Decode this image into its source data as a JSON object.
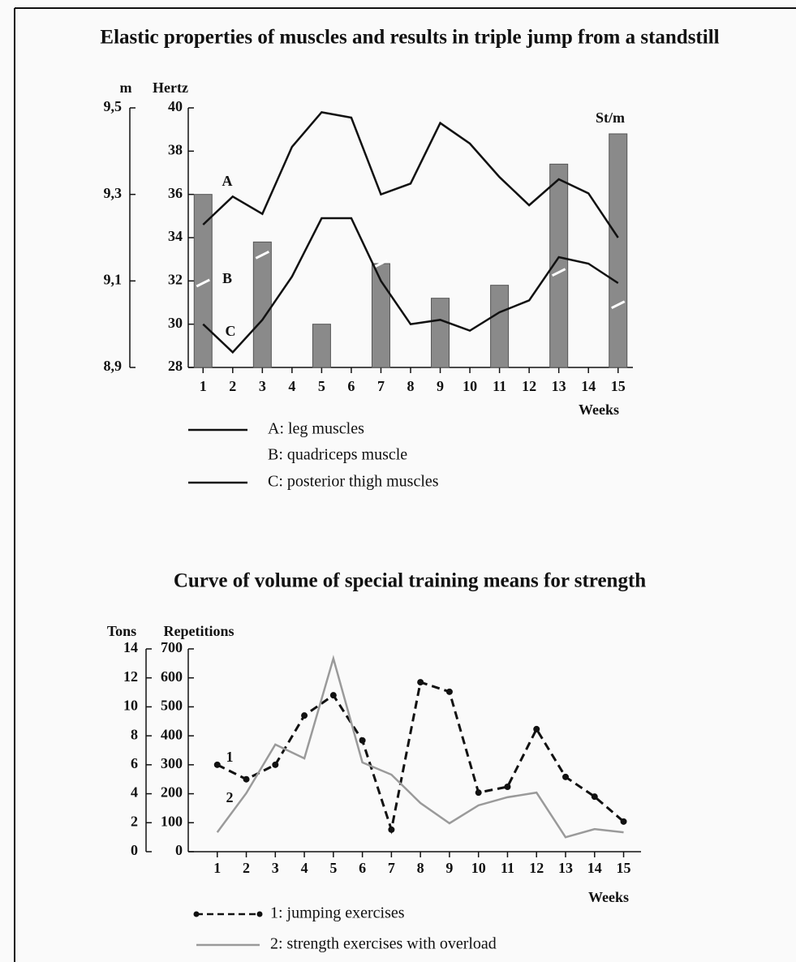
{
  "chart_data": [
    {
      "type": "bar",
      "title": "Elastic properties of muscles and results in triple jump from a standstill",
      "x_label": "Weeks",
      "y_label": "Hertz",
      "y2_label": "m",
      "x": [
        1,
        2,
        3,
        4,
        5,
        6,
        7,
        8,
        9,
        10,
        11,
        12,
        13,
        14,
        15
      ],
      "xlim": [
        0.5,
        15.5
      ],
      "xticks": [
        1,
        2,
        3,
        4,
        5,
        6,
        7,
        8,
        9,
        10,
        11,
        12,
        13,
        14,
        15
      ],
      "ylim": [
        28,
        40
      ],
      "yticks": [
        28,
        30,
        32,
        34,
        36,
        38,
        40
      ],
      "y2lim": [
        8.9,
        9.5
      ],
      "y2ticks": [
        {
          "value": 8.9,
          "label": "8,9"
        },
        {
          "value": 9.1,
          "label": "9,1"
        },
        {
          "value": 9.3,
          "label": "9,3"
        },
        {
          "value": 9.5,
          "label": "9,5"
        }
      ],
      "series": [
        {
          "type": "bar",
          "axis": "y2",
          "color": "#8a8a8a",
          "values": [
            9.3,
            null,
            9.19,
            null,
            9.0,
            null,
            9.14,
            null,
            9.06,
            null,
            9.09,
            null,
            9.37,
            null,
            9.44
          ]
        },
        {
          "type": "line",
          "name": "A: leg muscles",
          "color": "#111111",
          "values": [
            34.6,
            35.9,
            35.1,
            38.2,
            39.8,
            39.55,
            36.0,
            36.5,
            39.3,
            38.35,
            36.8,
            35.5,
            36.7,
            36.05,
            34.0
          ]
        },
        {
          "type": "point",
          "name": "B: quadriceps muscle",
          "color": "#ffffff",
          "values": [
            31.9,
            null,
            33.2,
            null,
            null,
            null,
            32.8,
            null,
            null,
            null,
            null,
            null,
            32.4,
            null,
            30.9
          ]
        },
        {
          "type": "line",
          "name": "C: posterior thigh muscles",
          "color": "#111111",
          "values": [
            30,
            28.7,
            30.2,
            32.2,
            34.9,
            34.9,
            32,
            30,
            30.2,
            29.7,
            30.55,
            31.1,
            33.1,
            32.8,
            31.9
          ]
        }
      ],
      "annotations": [
        "A",
        "B",
        "C",
        "St/m"
      ]
    },
    {
      "type": "line",
      "title": "Curve of volume of special training means for strength",
      "x_label": "Weeks",
      "y_label": "Repetitions",
      "y2_label": "Tons",
      "x": [
        1,
        2,
        3,
        4,
        5,
        6,
        7,
        8,
        9,
        10,
        11,
        12,
        13,
        14,
        15
      ],
      "xlim": [
        0,
        15.6
      ],
      "xticks": [
        1,
        2,
        3,
        4,
        5,
        6,
        7,
        8,
        9,
        10,
        11,
        12,
        13,
        14,
        15
      ],
      "ylim": [
        0,
        700
      ],
      "yticks": [
        0,
        100,
        200,
        300,
        400,
        500,
        600,
        700
      ],
      "y2lim": [
        0,
        14
      ],
      "y2ticks": [
        0,
        2,
        4,
        6,
        8,
        10,
        12,
        14
      ],
      "series": [
        {
          "type": "line",
          "name": "1: jumping exercises",
          "color": "#111111",
          "line_style": "dashed",
          "markers": true,
          "values": [
            300,
            250,
            300,
            470,
            540,
            384,
            76,
            585,
            552,
            204,
            224,
            423,
            258,
            190,
            104
          ]
        },
        {
          "type": "line",
          "name": "2: strength exercises with overload",
          "color": "#9a9a9a",
          "values": [
            67,
            202,
            370,
            322,
            667,
            308,
            266,
            168,
            98,
            160,
            188,
            204,
            50,
            78,
            67
          ]
        }
      ],
      "annotations": [
        "1",
        "2"
      ]
    }
  ]
}
